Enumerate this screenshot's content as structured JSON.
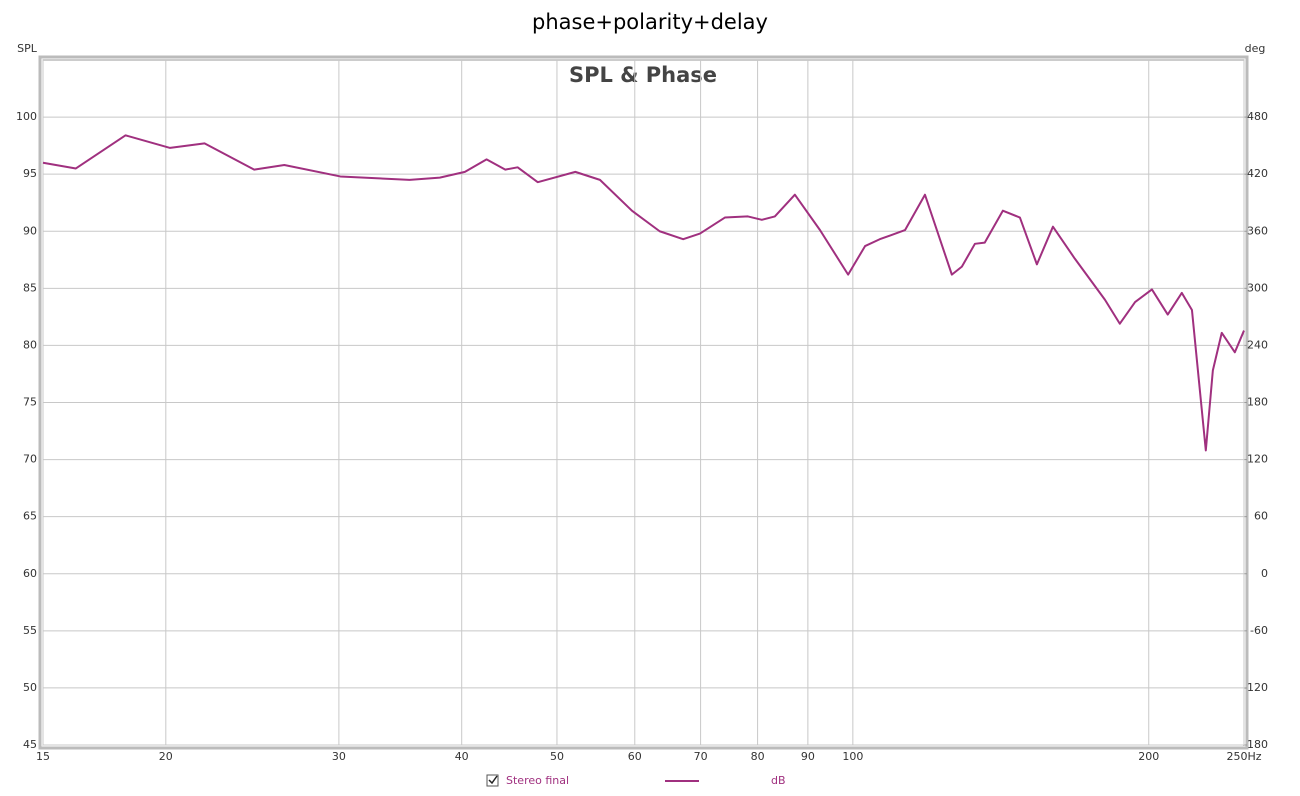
{
  "chart_data": {
    "type": "line",
    "title": "phase+polarity+delay",
    "subtitle": "SPL & Phase",
    "y_label": "SPL",
    "y2_label": "deg",
    "log_x": true,
    "grid": true,
    "x": [
      15,
      16.2,
      18.2,
      20.2,
      21.9,
      24.6,
      26.4,
      30.1,
      35.4,
      38.0,
      40.3,
      42.4,
      44.3,
      45.6,
      47.8,
      52.2,
      55.3,
      59.6,
      63.6,
      67.2,
      69.9,
      74.1,
      78.2,
      80.8,
      83.3,
      87.3,
      92.6,
      98.9,
      102.9,
      106.5,
      113,
      118.4,
      126.1,
      129.1,
      133.1,
      136.2,
      142.1,
      147.9,
      153.9,
      159.8,
      168.2,
      180.5,
      186.9,
      193.7,
      201.5,
      209.1,
      216.1,
      221.3,
      228.6,
      232.4,
      237.3,
      244.7,
      250
    ],
    "series": [
      {
        "name": "Stereo final",
        "units": "dB",
        "color": "#a0307f",
        "values": [
          96.0,
          95.5,
          98.4,
          97.3,
          97.7,
          95.4,
          95.8,
          94.8,
          94.5,
          94.7,
          95.2,
          96.3,
          95.4,
          95.6,
          94.3,
          95.2,
          94.5,
          91.8,
          90.0,
          89.3,
          89.8,
          91.2,
          91.3,
          91.0,
          91.3,
          93.2,
          90.1,
          86.2,
          88.7,
          89.3,
          90.1,
          93.2,
          86.2,
          86.9,
          88.9,
          89.0,
          91.8,
          91.2,
          87.1,
          90.4,
          87.6,
          84.0,
          81.9,
          83.8,
          84.9,
          82.7,
          84.6,
          83.1,
          70.8,
          77.8,
          81.1,
          79.4,
          81.3
        ]
      }
    ],
    "xlim": [
      15,
      250
    ],
    "xticks": [
      15,
      20,
      30,
      40,
      50,
      60,
      70,
      80,
      90,
      100,
      200,
      {
        "value": 250,
        "label": "250Hz"
      }
    ],
    "ylim": [
      45,
      105
    ],
    "yticks": [
      45,
      50,
      55,
      60,
      65,
      70,
      75,
      80,
      85,
      90,
      95,
      100
    ],
    "y2lim": [
      -180,
      540
    ],
    "y2ticks": [
      -180,
      -120,
      -60,
      0,
      60,
      120,
      180,
      240,
      300,
      360,
      420,
      480
    ]
  }
}
